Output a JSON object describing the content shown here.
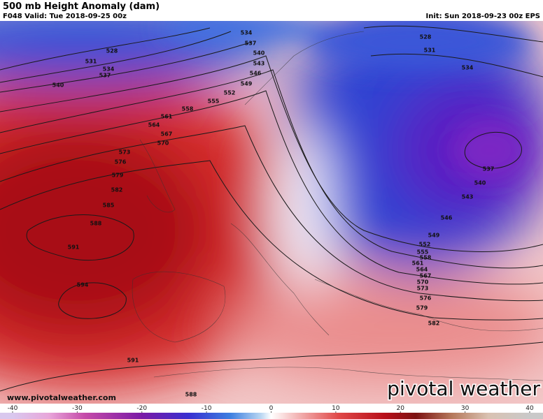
{
  "header": {
    "title": "500 mb Height Anomaly (dam)",
    "valid": "F048 Valid: Tue 2018-09-25 00z",
    "init": "Init: Sun 2018-09-23 00z EPS"
  },
  "contour_labels": [
    528,
    531,
    534,
    537,
    540,
    534,
    537,
    540,
    543,
    546,
    549,
    552,
    555,
    558,
    561,
    564,
    567,
    570,
    573,
    576,
    579,
    582,
    585,
    588,
    591,
    594,
    528,
    531,
    534,
    537,
    540,
    543,
    546,
    549,
    552,
    555,
    558,
    561,
    564,
    567,
    570,
    573,
    576,
    579,
    582,
    591,
    588
  ],
  "colorbar": {
    "ticks": [
      -40,
      -30,
      -20,
      -10,
      0,
      10,
      20,
      30,
      40
    ]
  },
  "footer": {
    "website": "www.pivotalweather.com",
    "logo": "pivotal weather"
  }
}
